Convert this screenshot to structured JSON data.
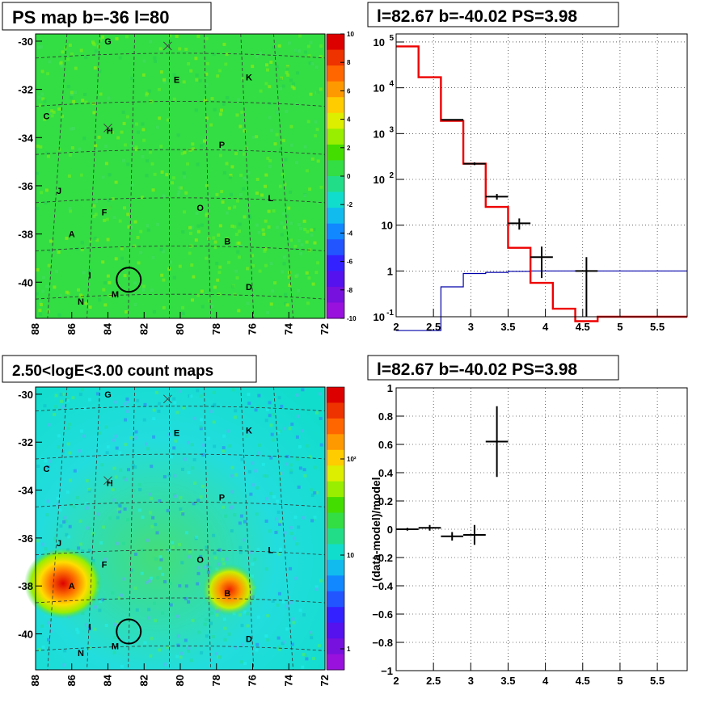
{
  "chart_data": [
    {
      "type": "heatmap",
      "title": "PS map b=-36 l=80",
      "xticks": [
        "88",
        "86",
        "84",
        "82",
        "80",
        "78",
        "76",
        "74",
        "72"
      ],
      "yticks": [
        "-30",
        "-32",
        "-34",
        "-36",
        "-38",
        "-40"
      ],
      "xlim": [
        88,
        72
      ],
      "ylim": [
        -41.5,
        -29.7
      ],
      "colorbar": {
        "ticks": [
          "10",
          "8",
          "6",
          "4",
          "2",
          "0",
          "-2",
          "-4",
          "-6",
          "-8",
          "-10"
        ],
        "range": [
          -10,
          10
        ]
      },
      "sources": [
        {
          "label": "G",
          "l": 84.0,
          "b": -30.0
        },
        {
          "label": "E",
          "l": 80.2,
          "b": -31.6
        },
        {
          "label": "K",
          "l": 76.2,
          "b": -31.5
        },
        {
          "label": "C",
          "l": 87.4,
          "b": -33.1
        },
        {
          "label": "H",
          "l": 83.9,
          "b": -33.7
        },
        {
          "label": "P",
          "l": 77.7,
          "b": -34.3
        },
        {
          "label": "J",
          "l": 86.7,
          "b": -36.2
        },
        {
          "label": "L",
          "l": 75.0,
          "b": -36.5
        },
        {
          "label": "O",
          "l": 78.9,
          "b": -36.9
        },
        {
          "label": "F",
          "l": 84.2,
          "b": -37.1
        },
        {
          "label": "A",
          "l": 86.0,
          "b": -38.0
        },
        {
          "label": "B",
          "l": 77.4,
          "b": -38.3
        },
        {
          "label": "I",
          "l": 85.0,
          "b": -39.7
        },
        {
          "label": "D",
          "l": 76.2,
          "b": -40.2
        },
        {
          "label": "M",
          "l": 83.6,
          "b": -40.5
        },
        {
          "label": "N",
          "l": 85.5,
          "b": -40.8
        }
      ]
    },
    {
      "type": "line",
      "title": "l=82.67 b=-40.02 PS=3.98",
      "xticks": [
        "2",
        "2.5",
        "3",
        "3.5",
        "4",
        "4.5",
        "5",
        "5.5"
      ],
      "yticks": [
        "10^-1",
        "1",
        "10",
        "10^2",
        "10^3",
        "10^4",
        "10^5"
      ],
      "xlim": [
        2,
        5.9
      ],
      "ylim": [
        0.1,
        150000
      ],
      "yscale": "log",
      "model": {
        "color": "#ee0000",
        "x": [
          2.0,
          2.3,
          2.6,
          2.9,
          3.2,
          3.5,
          3.8,
          4.1,
          4.4,
          4.7,
          5.9
        ],
        "y": [
          80000,
          17000,
          1900,
          220,
          25,
          3.2,
          0.55,
          0.15,
          0.08,
          0.1,
          0.1
        ]
      },
      "background": {
        "color": "#0000aa",
        "x": [
          2.0,
          2.3,
          2.6,
          2.9,
          3.2,
          3.5,
          3.8,
          4.1,
          4.4,
          4.7,
          5.9
        ],
        "y": [
          0.05,
          0.05,
          0.45,
          0.88,
          0.93,
          0.98,
          1.0,
          1.0,
          1.0,
          1.0,
          1.0
        ]
      },
      "points": [
        {
          "x": 2.75,
          "y": 2000,
          "xerr": 0.15,
          "ylo": 1950,
          "yhi": 2050
        },
        {
          "x": 3.05,
          "y": 220,
          "xerr": 0.15,
          "ylo": 205,
          "yhi": 235
        },
        {
          "x": 3.35,
          "y": 42,
          "xerr": 0.15,
          "ylo": 36,
          "yhi": 48
        },
        {
          "x": 3.65,
          "y": 11,
          "xerr": 0.15,
          "ylo": 8,
          "yhi": 14
        },
        {
          "x": 3.95,
          "y": 2,
          "xerr": 0.15,
          "ylo": 0.7,
          "yhi": 3.4
        },
        {
          "x": 4.55,
          "y": 1,
          "xerr": 0.15,
          "ylo": 0.1,
          "yhi": 2
        }
      ]
    },
    {
      "type": "heatmap",
      "title": "2.50<logE<3.00 count maps",
      "xticks": [
        "88",
        "86",
        "84",
        "82",
        "80",
        "78",
        "76",
        "74",
        "72"
      ],
      "yticks": [
        "-30",
        "-32",
        "-34",
        "-36",
        "-38",
        "-40"
      ],
      "xlim": [
        88,
        72
      ],
      "ylim": [
        -41.5,
        -29.7
      ],
      "colorbar": {
        "ticks": [
          "10^2",
          "10",
          "1"
        ]
      },
      "bright_sources": [
        "A",
        "B"
      ]
    },
    {
      "type": "scatter",
      "title": "l=82.67 b=-40.02 PS=3.98",
      "ylabel": "(data-model)/model",
      "xticks": [
        "2",
        "2.5",
        "3",
        "3.5",
        "4",
        "4.5",
        "5",
        "5.5"
      ],
      "yticks": [
        "1",
        "0.8",
        "0.6",
        "0.4",
        "0.2",
        "0",
        "−0.2",
        "−0.4",
        "−0.6",
        "−0.8",
        "−1"
      ],
      "xlim": [
        2,
        5.9
      ],
      "ylim": [
        -1,
        1
      ],
      "points": [
        {
          "x": 2.15,
          "y": 0.0,
          "xerr": 0.15,
          "yerr": 0.01
        },
        {
          "x": 2.45,
          "y": 0.01,
          "xerr": 0.15,
          "yerr": 0.02
        },
        {
          "x": 2.75,
          "y": -0.05,
          "xerr": 0.15,
          "yerr": 0.03
        },
        {
          "x": 3.05,
          "y": -0.04,
          "xerr": 0.15,
          "yerr": 0.07
        },
        {
          "x": 3.35,
          "y": 0.62,
          "xerr": 0.15,
          "yerr": 0.25
        }
      ]
    }
  ]
}
